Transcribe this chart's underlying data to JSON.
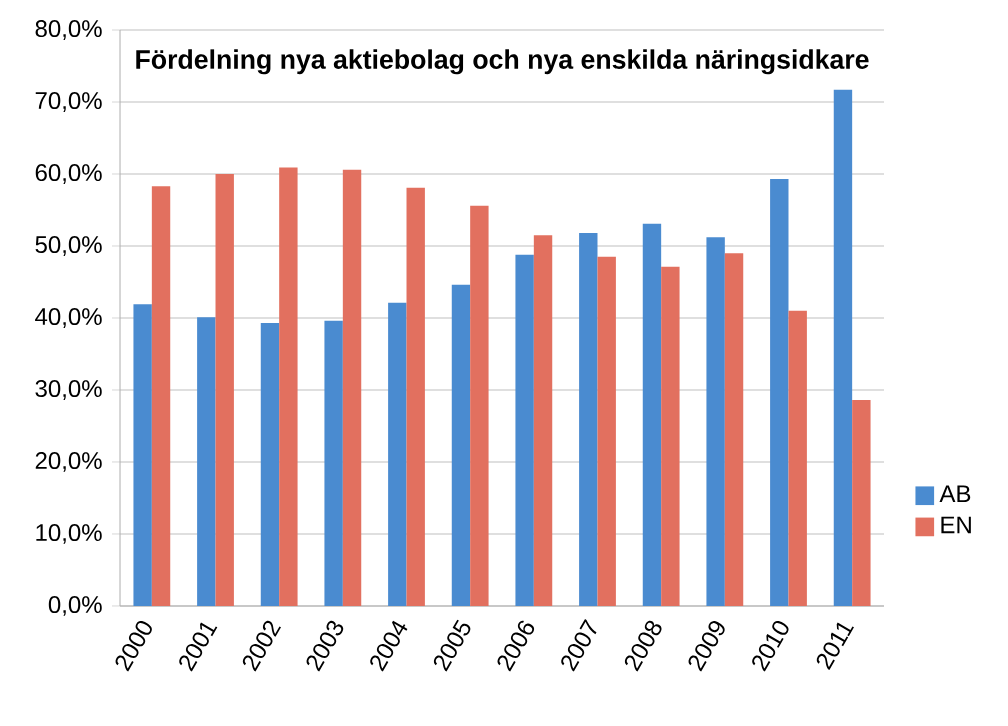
{
  "chart_data": {
    "type": "bar",
    "title": "Fördelning nya aktiebolag och nya enskilda näringsidkare",
    "categories": [
      "2000",
      "2001",
      "2002",
      "2003",
      "2004",
      "2005",
      "2006",
      "2007",
      "2008",
      "2009",
      "2010",
      "2011"
    ],
    "series": [
      {
        "name": "AB",
        "color": "#4a8bd0",
        "values": [
          41.9,
          40.1,
          39.3,
          39.6,
          42.1,
          44.6,
          48.8,
          51.8,
          53.1,
          51.2,
          59.3,
          71.7
        ]
      },
      {
        "name": "EN",
        "color": "#e2705f",
        "values": [
          58.3,
          60.0,
          60.9,
          60.6,
          58.1,
          55.6,
          51.5,
          48.5,
          47.1,
          49.0,
          41.0,
          28.6
        ]
      }
    ],
    "ylim": [
      0,
      80
    ],
    "yticks": [
      {
        "value": 0,
        "label": "0,0%"
      },
      {
        "value": 10,
        "label": "10,0%"
      },
      {
        "value": 20,
        "label": "20,0%"
      },
      {
        "value": 30,
        "label": "30,0%"
      },
      {
        "value": 40,
        "label": "40,0%"
      },
      {
        "value": 50,
        "label": "50,0%"
      },
      {
        "value": 60,
        "label": "60,0%"
      },
      {
        "value": 70,
        "label": "70,0%"
      },
      {
        "value": 80,
        "label": "80,0%"
      }
    ],
    "grid": "y",
    "legend": "right"
  }
}
